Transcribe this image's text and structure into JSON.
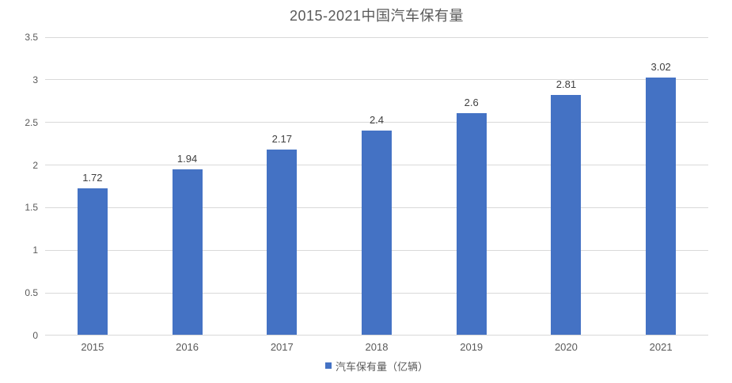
{
  "chart_data": {
    "type": "bar",
    "title": "2015-2021中国汽车保有量",
    "categories": [
      "2015",
      "2016",
      "2017",
      "2018",
      "2019",
      "2020",
      "2021"
    ],
    "values": [
      1.72,
      1.94,
      2.17,
      2.4,
      2.6,
      2.81,
      3.02
    ],
    "value_labels": [
      "1.72",
      "1.94",
      "2.17",
      "2.4",
      "2.6",
      "2.81",
      "3.02"
    ],
    "series_name": "汽车保有量（亿辆）",
    "legend_position": "bottom",
    "xlabel": "",
    "ylabel": "",
    "ylim": [
      0,
      3.5
    ],
    "ytick_step": 0.5,
    "yticks": [
      "0",
      "0.5",
      "1",
      "1.5",
      "2",
      "2.5",
      "3",
      "3.5"
    ],
    "grid": true,
    "colors": {
      "bar": "#4472C4",
      "gridline": "#D9D9D9",
      "axis_line": "#D9D9D9",
      "title_text": "#595959",
      "tick_text": "#595959",
      "data_label_text": "#404040",
      "background": "#FFFFFF"
    }
  }
}
